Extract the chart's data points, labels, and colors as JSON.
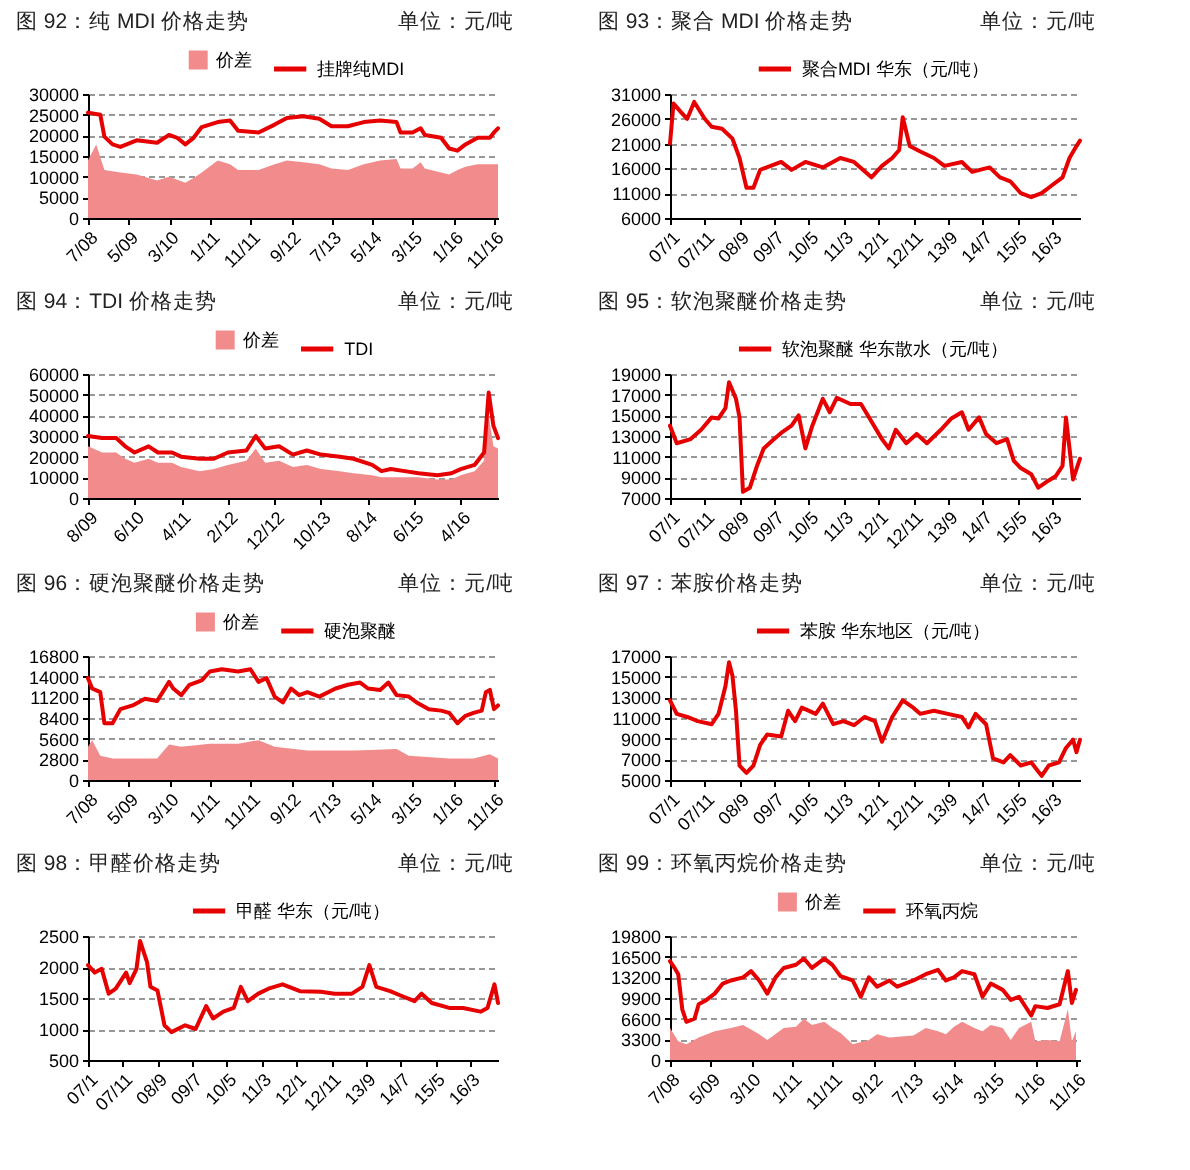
{
  "chart_data": [
    {
      "type": "line",
      "title": "图 92：纯 MDI 价格走势",
      "annotations": [
        "单位：元/吨"
      ],
      "legend": "top",
      "grid": "y",
      "xlim": [
        "2008-07",
        "2016-12"
      ],
      "xticks": [
        {
          "value": "2008-07",
          "label": "7/08"
        },
        {
          "value": "2009-05",
          "label": "5/09"
        },
        {
          "value": "2010-03",
          "label": "3/10"
        },
        {
          "value": "2011-01",
          "label": "1/11"
        },
        {
          "value": "2011-11",
          "label": "11/11"
        },
        {
          "value": "2012-09",
          "label": "9/12"
        },
        {
          "value": "2013-07",
          "label": "7/13"
        },
        {
          "value": "2014-05",
          "label": "5/14"
        },
        {
          "value": "2015-03",
          "label": "3/15"
        },
        {
          "value": "2016-01",
          "label": "1/16"
        },
        {
          "value": "2016-11",
          "label": "11/16"
        }
      ],
      "ylim": [
        0,
        30000
      ],
      "yticks": [
        0,
        5000,
        10000,
        15000,
        20000,
        25000,
        30000
      ],
      "series": [
        {
          "name": "价差",
          "type": "area",
          "color": "#f28b8b",
          "x": [
            "2008-07",
            "2008-09",
            "2008-11",
            "2009-03",
            "2009-07",
            "2009-12",
            "2010-03",
            "2010-07",
            "2010-09",
            "2010-11",
            "2011-03",
            "2011-06",
            "2011-08",
            "2012-01",
            "2012-05",
            "2012-08",
            "2012-12",
            "2013-04",
            "2013-07",
            "2013-11",
            "2014-03",
            "2014-07",
            "2014-11",
            "2014-12",
            "2015-03",
            "2015-05",
            "2015-06",
            "2015-10",
            "2015-12",
            "2016-02",
            "2016-04",
            "2016-07",
            "2016-10",
            "2016-12"
          ],
          "values": [
            14000,
            17800,
            11600,
            11000,
            10500,
            9100,
            10000,
            8500,
            9700,
            11000,
            13900,
            13000,
            11600,
            11600,
            13000,
            13900,
            13500,
            13000,
            12000,
            11600,
            13000,
            13900,
            14300,
            12000,
            12000,
            13500,
            12000,
            11000,
            10500,
            11600,
            12400,
            13000,
            13000,
            13000
          ]
        },
        {
          "name": "挂牌纯MDI",
          "color": "#e60000",
          "x": [
            "2008-07",
            "2008-10",
            "2008-11",
            "2009-01",
            "2009-03",
            "2009-07",
            "2009-12",
            "2010-03",
            "2010-05",
            "2010-07",
            "2010-09",
            "2010-11",
            "2011-03",
            "2011-06",
            "2011-08",
            "2012-01",
            "2012-05",
            "2012-08",
            "2012-12",
            "2013-04",
            "2013-07",
            "2013-11",
            "2014-03",
            "2014-07",
            "2014-11",
            "2014-12",
            "2015-03",
            "2015-05",
            "2015-06",
            "2015-10",
            "2015-12",
            "2016-02",
            "2016-04",
            "2016-07",
            "2016-10",
            "2016-11",
            "2016-12"
          ],
          "values": [
            25500,
            25000,
            19700,
            17800,
            17200,
            18800,
            18200,
            20100,
            19400,
            17800,
            19400,
            22000,
            23200,
            23600,
            21100,
            20700,
            22600,
            24200,
            24600,
            24000,
            22200,
            22200,
            23200,
            23600,
            23200,
            20700,
            20700,
            21700,
            20100,
            19400,
            16800,
            16300,
            17800,
            19400,
            19400,
            20700,
            21700
          ]
        }
      ]
    },
    {
      "type": "line",
      "title": "图 93：聚合 MDI 价格走势",
      "annotations": [
        "单位：元/吨"
      ],
      "legend": "top",
      "grid": "y",
      "xlim": [
        "2007-01",
        "2016-11"
      ],
      "xticks": [
        {
          "value": "2007-01",
          "label": "07/1"
        },
        {
          "value": "2007-11",
          "label": "07/11"
        },
        {
          "value": "2008-09",
          "label": "08/9"
        },
        {
          "value": "2009-07",
          "label": "09/7"
        },
        {
          "value": "2010-05",
          "label": "10/5"
        },
        {
          "value": "2011-03",
          "label": "11/3"
        },
        {
          "value": "2012-01",
          "label": "12/1"
        },
        {
          "value": "2012-11",
          "label": "12/11"
        },
        {
          "value": "2013-09",
          "label": "13/9"
        },
        {
          "value": "2014-07",
          "label": "14/7"
        },
        {
          "value": "2015-05",
          "label": "15/5"
        },
        {
          "value": "2016-03",
          "label": "16/3"
        }
      ],
      "ylim": [
        6000,
        31000
      ],
      "yticks": [
        6000,
        11000,
        16000,
        21000,
        26000,
        31000
      ],
      "series": [
        {
          "name": "聚合MDI 华东（元/吨）",
          "color": "#e60000",
          "x": [
            "2007-01",
            "2007-02",
            "2007-04",
            "2007-06",
            "2007-08",
            "2007-11",
            "2008-01",
            "2008-04",
            "2008-07",
            "2008-09",
            "2008-11",
            "2009-01",
            "2009-03",
            "2009-06",
            "2009-09",
            "2009-12",
            "2010-04",
            "2010-09",
            "2011-02",
            "2011-06",
            "2011-11",
            "2012-02",
            "2012-05",
            "2012-07",
            "2012-08",
            "2012-10",
            "2013-01",
            "2013-05",
            "2013-08",
            "2014-01",
            "2014-04",
            "2014-09",
            "2014-12",
            "2015-03",
            "2015-06",
            "2015-09",
            "2015-12",
            "2016-03",
            "2016-06",
            "2016-08",
            "2016-10",
            "2016-11"
          ],
          "values": [
            21000,
            29100,
            27500,
            26000,
            29400,
            26000,
            24400,
            24000,
            22000,
            18100,
            12100,
            12100,
            15700,
            16500,
            17300,
            15700,
            17300,
            16200,
            18100,
            17300,
            14200,
            16500,
            18100,
            19700,
            26300,
            20500,
            19400,
            18100,
            16500,
            17300,
            15300,
            16200,
            14200,
            13400,
            11000,
            10200,
            11000,
            12600,
            14200,
            18100,
            20500,
            21600
          ]
        }
      ]
    },
    {
      "type": "line",
      "title": "图 94：TDI 价格走势",
      "annotations": [
        "单位：元/吨"
      ],
      "legend": "top",
      "grid": "y",
      "xlim": [
        "2009-08",
        "2016-12"
      ],
      "xticks": [
        {
          "value": "2009-08",
          "label": "8/09"
        },
        {
          "value": "2010-06",
          "label": "6/10"
        },
        {
          "value": "2011-04",
          "label": "4/11"
        },
        {
          "value": "2012-02",
          "label": "2/12"
        },
        {
          "value": "2012-12",
          "label": "12/12"
        },
        {
          "value": "2013-10",
          "label": "10/13"
        },
        {
          "value": "2014-08",
          "label": "8/14"
        },
        {
          "value": "2015-06",
          "label": "6/15"
        },
        {
          "value": "2016-04",
          "label": "4/16"
        }
      ],
      "ylim": [
        0,
        60000
      ],
      "yticks": [
        0,
        10000,
        20000,
        30000,
        40000,
        50000,
        60000
      ],
      "series": [
        {
          "name": "价差",
          "type": "area",
          "color": "#f28b8b",
          "x": [
            "2009-08",
            "2009-11",
            "2010-02",
            "2010-04",
            "2010-06",
            "2010-09",
            "2010-11",
            "2011-02",
            "2011-04",
            "2011-08",
            "2011-11",
            "2012-02",
            "2012-06",
            "2012-08",
            "2012-10",
            "2013-01",
            "2013-04",
            "2013-07",
            "2013-10",
            "2014-02",
            "2014-05",
            "2014-09",
            "2014-11",
            "2015-01",
            "2015-04",
            "2015-07",
            "2015-11",
            "2016-02",
            "2016-04",
            "2016-07",
            "2016-09",
            "2016-10",
            "2016-11",
            "2016-12"
          ],
          "values": [
            25000,
            22000,
            22000,
            19000,
            17000,
            19000,
            17000,
            17000,
            15000,
            13000,
            14000,
            16000,
            18000,
            24000,
            17000,
            18000,
            15000,
            16000,
            14000,
            13000,
            12000,
            11000,
            10000,
            10000,
            10000,
            10000,
            9000,
            9000,
            11000,
            13000,
            18000,
            40000,
            25000,
            24000
          ]
        },
        {
          "name": "TDI",
          "color": "#e60000",
          "x": [
            "2009-08",
            "2009-11",
            "2010-02",
            "2010-04",
            "2010-06",
            "2010-09",
            "2010-11",
            "2011-02",
            "2011-04",
            "2011-08",
            "2011-11",
            "2012-02",
            "2012-06",
            "2012-08",
            "2012-10",
            "2013-01",
            "2013-04",
            "2013-07",
            "2013-10",
            "2014-02",
            "2014-05",
            "2014-09",
            "2014-11",
            "2015-01",
            "2015-04",
            "2015-07",
            "2015-11",
            "2016-02",
            "2016-04",
            "2016-07",
            "2016-09",
            "2016-10",
            "2016-11",
            "2016-12"
          ],
          "values": [
            30000,
            29000,
            29000,
            25000,
            22000,
            25000,
            22000,
            22000,
            20000,
            19000,
            19000,
            22000,
            23000,
            30000,
            24000,
            25000,
            21000,
            23000,
            21000,
            20000,
            19000,
            16000,
            13000,
            14000,
            13000,
            12000,
            11000,
            12000,
            14000,
            16000,
            22000,
            51000,
            35000,
            29000
          ]
        }
      ]
    },
    {
      "type": "line",
      "title": "图 95：软泡聚醚价格走势",
      "annotations": [
        "单位：元/吨"
      ],
      "legend": "top",
      "grid": "y",
      "xlim": [
        "2007-01",
        "2016-11"
      ],
      "xticks": [
        {
          "value": "2007-01",
          "label": "07/1"
        },
        {
          "value": "2007-11",
          "label": "07/11"
        },
        {
          "value": "2008-09",
          "label": "08/9"
        },
        {
          "value": "2009-07",
          "label": "09/7"
        },
        {
          "value": "2010-05",
          "label": "10/5"
        },
        {
          "value": "2011-03",
          "label": "11/3"
        },
        {
          "value": "2012-01",
          "label": "12/1"
        },
        {
          "value": "2012-11",
          "label": "12/11"
        },
        {
          "value": "2013-09",
          "label": "13/9"
        },
        {
          "value": "2014-07",
          "label": "14/7"
        },
        {
          "value": "2015-05",
          "label": "15/5"
        },
        {
          "value": "2016-03",
          "label": "16/3"
        }
      ],
      "ylim": [
        7000,
        19000
      ],
      "yticks": [
        7000,
        9000,
        11000,
        13000,
        15000,
        17000,
        19000
      ],
      "series": [
        {
          "name": "软泡聚醚 华东散水（元/吨）",
          "color": "#e60000",
          "x": [
            "2007-01",
            "2007-03",
            "2007-07",
            "2007-10",
            "2008-01",
            "2008-03",
            "2008-05",
            "2008-06",
            "2008-08",
            "2008-09",
            "2008-10",
            "2008-12",
            "2009-02",
            "2009-04",
            "2009-07",
            "2009-09",
            "2009-12",
            "2010-02",
            "2010-04",
            "2010-06",
            "2010-09",
            "2010-11",
            "2011-01",
            "2011-05",
            "2011-08",
            "2011-11",
            "2012-02",
            "2012-04",
            "2012-06",
            "2012-09",
            "2012-12",
            "2013-03",
            "2013-07",
            "2013-10",
            "2014-01",
            "2014-03",
            "2014-06",
            "2014-08",
            "2014-11",
            "2015-02",
            "2015-04",
            "2015-06",
            "2015-09",
            "2015-11",
            "2016-02",
            "2016-04",
            "2016-06",
            "2016-07",
            "2016-09",
            "2016-11"
          ],
          "values": [
            14000,
            12300,
            12700,
            13600,
            14800,
            14700,
            15700,
            18200,
            16600,
            14800,
            7600,
            8000,
            10100,
            11800,
            12700,
            13300,
            14000,
            15000,
            11800,
            14000,
            16600,
            15300,
            16700,
            16100,
            16100,
            14400,
            12700,
            11800,
            13600,
            12300,
            13200,
            12300,
            13600,
            14700,
            15300,
            13600,
            14800,
            13200,
            12300,
            12700,
            10600,
            9900,
            9300,
            8000,
            8700,
            9100,
            10100,
            14800,
            8800,
            10800
          ]
        }
      ]
    },
    {
      "type": "line",
      "title": "图 96：硬泡聚醚价格走势",
      "annotations": [
        "单位：元/吨"
      ],
      "legend": "top",
      "grid": "y",
      "xlim": [
        "2008-07",
        "2016-12"
      ],
      "xticks": [
        {
          "value": "2008-07",
          "label": "7/08"
        },
        {
          "value": "2009-05",
          "label": "5/09"
        },
        {
          "value": "2010-03",
          "label": "3/10"
        },
        {
          "value": "2011-01",
          "label": "1/11"
        },
        {
          "value": "2011-11",
          "label": "11/11"
        },
        {
          "value": "2012-09",
          "label": "9/12"
        },
        {
          "value": "2013-07",
          "label": "7/13"
        },
        {
          "value": "2014-05",
          "label": "5/14"
        },
        {
          "value": "2015-03",
          "label": "3/15"
        },
        {
          "value": "2016-01",
          "label": "1/16"
        },
        {
          "value": "2016-11",
          "label": "11/16"
        }
      ],
      "ylim": [
        0,
        16800
      ],
      "yticks": [
        0,
        2800,
        5600,
        8400,
        11200,
        14000,
        16800
      ],
      "series": [
        {
          "name": "价差",
          "type": "area",
          "color": "#f28b8b",
          "x": [
            "2008-07",
            "2008-08",
            "2008-10",
            "2009-01",
            "2009-06",
            "2009-12",
            "2010-03",
            "2010-06",
            "2011-01",
            "2011-08",
            "2012-01",
            "2012-05",
            "2013-01",
            "2014-01",
            "2014-11",
            "2015-02",
            "2015-12",
            "2016-06",
            "2016-10",
            "2016-12"
          ],
          "values": [
            4500,
            5400,
            3300,
            2900,
            2900,
            2900,
            4800,
            4500,
            4900,
            4900,
            5400,
            4500,
            4000,
            4000,
            4200,
            3300,
            2900,
            2900,
            3500,
            2900
          ]
        },
        {
          "name": "硬泡聚醚",
          "color": "#e60000",
          "x": [
            "2008-07",
            "2008-08",
            "2008-10",
            "2008-11",
            "2009-01",
            "2009-03",
            "2009-06",
            "2009-09",
            "2009-12",
            "2010-03",
            "2010-04",
            "2010-06",
            "2010-08",
            "2010-11",
            "2011-01",
            "2011-04",
            "2011-08",
            "2011-11",
            "2012-01",
            "2012-03",
            "2012-05",
            "2012-07",
            "2012-09",
            "2012-11",
            "2013-01",
            "2013-04",
            "2013-08",
            "2013-11",
            "2014-02",
            "2014-04",
            "2014-07",
            "2014-09",
            "2014-11",
            "2015-02",
            "2015-04",
            "2015-07",
            "2015-10",
            "2015-12",
            "2016-02",
            "2016-04",
            "2016-06",
            "2016-08",
            "2016-09",
            "2016-10",
            "2016-11",
            "2016-12"
          ],
          "values": [
            13800,
            12400,
            11900,
            7700,
            7700,
            9600,
            10100,
            11000,
            10700,
            13300,
            12400,
            11500,
            12900,
            13500,
            14700,
            15000,
            14700,
            15000,
            13300,
            13800,
            11300,
            10500,
            12400,
            11500,
            11900,
            11300,
            12400,
            12900,
            13200,
            12400,
            12200,
            13200,
            11500,
            11300,
            10500,
            9600,
            9400,
            9100,
            7700,
            8700,
            9100,
            9400,
            11900,
            12200,
            9600,
            10100
          ]
        }
      ]
    },
    {
      "type": "line",
      "title": "图 97：苯胺价格走势",
      "annotations": [
        "单位：元/吨"
      ],
      "legend": "top",
      "grid": "y",
      "xlim": [
        "2007-01",
        "2016-11"
      ],
      "xticks": [
        {
          "value": "2007-01",
          "label": "07/1"
        },
        {
          "value": "2007-11",
          "label": "07/11"
        },
        {
          "value": "2008-09",
          "label": "08/9"
        },
        {
          "value": "2009-07",
          "label": "09/7"
        },
        {
          "value": "2010-05",
          "label": "10/5"
        },
        {
          "value": "2011-03",
          "label": "11/3"
        },
        {
          "value": "2012-01",
          "label": "12/1"
        },
        {
          "value": "2012-11",
          "label": "12/11"
        },
        {
          "value": "2013-09",
          "label": "13/9"
        },
        {
          "value": "2014-07",
          "label": "14/7"
        },
        {
          "value": "2015-05",
          "label": "15/5"
        },
        {
          "value": "2016-03",
          "label": "16/3"
        }
      ],
      "ylim": [
        5000,
        17000
      ],
      "yticks": [
        5000,
        7000,
        9000,
        11000,
        13000,
        15000,
        17000
      ],
      "series": [
        {
          "name": "苯胺 华东地区（元/吨）",
          "color": "#e60000",
          "x": [
            "2007-01",
            "2007-03",
            "2007-06",
            "2007-09",
            "2008-01",
            "2008-03",
            "2008-05",
            "2008-06",
            "2008-07",
            "2008-08",
            "2008-09",
            "2008-11",
            "2009-01",
            "2009-03",
            "2009-05",
            "2009-09",
            "2009-11",
            "2010-01",
            "2010-03",
            "2010-07",
            "2010-09",
            "2010-12",
            "2011-03",
            "2011-06",
            "2011-09",
            "2011-12",
            "2012-02",
            "2012-05",
            "2012-08",
            "2012-11",
            "2013-01",
            "2013-05",
            "2013-09",
            "2014-01",
            "2014-03",
            "2014-05",
            "2014-08",
            "2014-10",
            "2015-01",
            "2015-03",
            "2015-06",
            "2015-09",
            "2015-12",
            "2016-02",
            "2016-05",
            "2016-07",
            "2016-09",
            "2016-10",
            "2016-11"
          ],
          "values": [
            12700,
            11400,
            11100,
            10700,
            10400,
            11400,
            14100,
            16400,
            15100,
            11700,
            6400,
            5700,
            6400,
            8400,
            9400,
            9200,
            11700,
            10700,
            12000,
            11400,
            12400,
            10400,
            10700,
            10300,
            11100,
            10700,
            8700,
            11100,
            12700,
            12000,
            11400,
            11700,
            11400,
            11100,
            10100,
            11400,
            10400,
            7100,
            6700,
            7400,
            6400,
            6700,
            5400,
            6400,
            6700,
            8100,
            8900,
            7700,
            8900
          ]
        }
      ]
    },
    {
      "type": "line",
      "title": "图 98：甲醛价格走势",
      "annotations": [
        "单位：元/吨"
      ],
      "legend": "top",
      "grid": "y",
      "xlim": [
        "2007-01",
        "2016-11"
      ],
      "xticks": [
        {
          "value": "2007-01",
          "label": "07/1"
        },
        {
          "value": "2007-11",
          "label": "07/11"
        },
        {
          "value": "2008-09",
          "label": "08/9"
        },
        {
          "value": "2009-07",
          "label": "09/7"
        },
        {
          "value": "2010-05",
          "label": "10/5"
        },
        {
          "value": "2011-03",
          "label": "11/3"
        },
        {
          "value": "2012-01",
          "label": "12/1"
        },
        {
          "value": "2012-11",
          "label": "12/11"
        },
        {
          "value": "2013-09",
          "label": "13/9"
        },
        {
          "value": "2014-07",
          "label": "14/7"
        },
        {
          "value": "2015-05",
          "label": "15/5"
        },
        {
          "value": "2016-03",
          "label": "16/3"
        }
      ],
      "ylim": [
        500,
        2500
      ],
      "yticks": [
        500,
        1000,
        1500,
        2000,
        2500
      ],
      "series": [
        {
          "name": "甲醛 华东（元/吨）",
          "color": "#e60000",
          "x": [
            "2007-01",
            "2007-03",
            "2007-05",
            "2007-07",
            "2007-09",
            "2007-12",
            "2008-01",
            "2008-03",
            "2008-04",
            "2008-06",
            "2008-07",
            "2008-09",
            "2008-11",
            "2009-01",
            "2009-05",
            "2009-08",
            "2009-11",
            "2010-01",
            "2010-04",
            "2010-07",
            "2010-09",
            "2010-11",
            "2011-02",
            "2011-05",
            "2011-09",
            "2012-02",
            "2012-08",
            "2012-12",
            "2013-05",
            "2013-08",
            "2013-10",
            "2013-12",
            "2014-04",
            "2014-07",
            "2014-11",
            "2015-01",
            "2015-04",
            "2015-09",
            "2016-01",
            "2016-06",
            "2016-08",
            "2016-10",
            "2016-11"
          ],
          "values": [
            2030,
            1910,
            1970,
            1570,
            1650,
            1910,
            1740,
            1970,
            2420,
            2080,
            1680,
            1620,
            1060,
            950,
            1060,
            1000,
            1370,
            1170,
            1280,
            1340,
            1680,
            1450,
            1570,
            1650,
            1720,
            1610,
            1600,
            1570,
            1570,
            1680,
            2030,
            1680,
            1610,
            1540,
            1450,
            1570,
            1420,
            1340,
            1340,
            1280,
            1340,
            1720,
            1420
          ]
        }
      ]
    },
    {
      "type": "line",
      "title": "图 99：环氧丙烷价格走势",
      "annotations": [
        "单位：元/吨"
      ],
      "legend": "top",
      "grid": "y",
      "xlim": [
        "2008-07",
        "2016-12"
      ],
      "xticks": [
        {
          "value": "2008-07",
          "label": "7/08"
        },
        {
          "value": "2009-05",
          "label": "5/09"
        },
        {
          "value": "2010-03",
          "label": "3/10"
        },
        {
          "value": "2011-01",
          "label": "1/11"
        },
        {
          "value": "2011-11",
          "label": "11/11"
        },
        {
          "value": "2012-09",
          "label": "9/12"
        },
        {
          "value": "2013-07",
          "label": "7/13"
        },
        {
          "value": "2014-05",
          "label": "5/14"
        },
        {
          "value": "2015-03",
          "label": "3/15"
        },
        {
          "value": "2016-01",
          "label": "1/16"
        },
        {
          "value": "2016-11",
          "label": "11/16"
        }
      ],
      "ylim": [
        0,
        19800
      ],
      "yticks": [
        0,
        3300,
        6600,
        9900,
        13200,
        16500,
        19800
      ],
      "series": [
        {
          "name": "价差",
          "type": "area",
          "color": "#f28b8b",
          "x": [
            "2008-07",
            "2008-09",
            "2008-11",
            "2009-02",
            "2009-06",
            "2009-10",
            "2010-01",
            "2010-05",
            "2010-07",
            "2010-11",
            "2011-02",
            "2011-04",
            "2011-06",
            "2011-09",
            "2011-11",
            "2012-01",
            "2012-04",
            "2012-08",
            "2012-10",
            "2013-01",
            "2013-07",
            "2013-10",
            "2014-01",
            "2014-03",
            "2014-05",
            "2014-07",
            "2014-10",
            "2014-12",
            "2015-02",
            "2015-05",
            "2015-07",
            "2015-09",
            "2015-12",
            "2016-01",
            "2016-04",
            "2016-07",
            "2016-09",
            "2016-10",
            "2016-11"
          ],
          "values": [
            5100,
            3000,
            2500,
            3600,
            4600,
            5100,
            5600,
            4100,
            3200,
            5100,
            5300,
            6600,
            5600,
            6100,
            5100,
            4300,
            2500,
            3200,
            4100,
            3600,
            3900,
            5100,
            4600,
            4100,
            5300,
            6100,
            5100,
            4600,
            5600,
            5100,
            3200,
            5100,
            6100,
            3000,
            3200,
            3000,
            8100,
            3000,
            4600
          ]
        },
        {
          "name": "环氧丙烷",
          "color": "#e60000",
          "x": [
            "2008-07",
            "2008-08",
            "2008-09",
            "2008-10",
            "2008-11",
            "2009-01",
            "2009-02",
            "2009-04",
            "2009-06",
            "2009-08",
            "2009-10",
            "2010-01",
            "2010-03",
            "2010-05",
            "2010-07",
            "2010-09",
            "2010-11",
            "2011-02",
            "2011-04",
            "2011-06",
            "2011-09",
            "2011-11",
            "2012-01",
            "2012-04",
            "2012-06",
            "2012-08",
            "2012-10",
            "2013-01",
            "2013-03",
            "2013-07",
            "2013-10",
            "2014-01",
            "2014-03",
            "2014-05",
            "2014-07",
            "2014-10",
            "2014-12",
            "2015-02",
            "2015-05",
            "2015-07",
            "2015-09",
            "2015-12",
            "2016-01",
            "2016-04",
            "2016-07",
            "2016-09",
            "2016-10",
            "2016-11"
          ],
          "values": [
            15800,
            14800,
            13700,
            8100,
            6100,
            6600,
            8900,
            9600,
            10600,
            12200,
            12700,
            13200,
            14200,
            12700,
            10600,
            13200,
            14700,
            15200,
            16200,
            14700,
            16200,
            15200,
            13400,
            12700,
            10100,
            13200,
            11700,
            12700,
            11700,
            12700,
            13700,
            14400,
            12700,
            13200,
            14200,
            13700,
            10100,
            12200,
            11200,
            9600,
            10100,
            7100,
            8600,
            8300,
            8900,
            14200,
            9100,
            11200
          ]
        }
      ]
    }
  ]
}
